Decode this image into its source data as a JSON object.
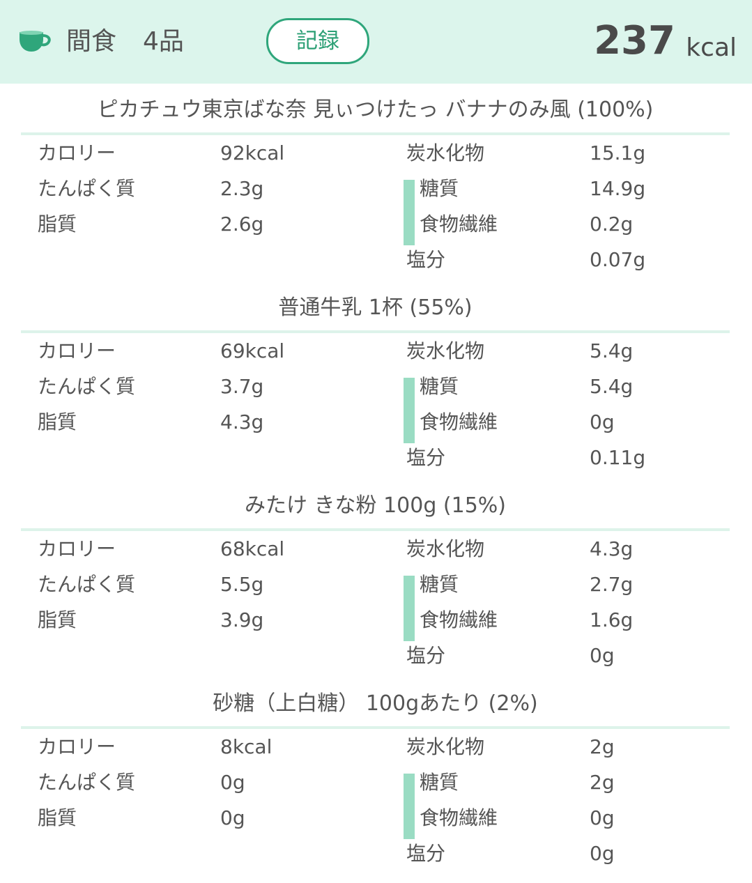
{
  "header": {
    "icon": "cup-icon",
    "meal_name": "間食",
    "item_count": "4品",
    "record_label": "記録",
    "total_kcal": "237",
    "total_unit": "kcal"
  },
  "foods": [
    {
      "title": "ピカチュウ東京ばな奈 見ぃつけたっ バナナのみ風 (100%)",
      "calorie_label": "カロリー",
      "calorie": "92kcal",
      "protein_label": "たんぱく質",
      "protein": "2.3g",
      "fat_label": "脂質",
      "fat": "2.6g",
      "carb_label": "炭水化物",
      "carb": "15.1g",
      "sugar_label": "糖質",
      "sugar": "14.9g",
      "fiber_label": "食物繊維",
      "fiber": "0.2g",
      "salt_label": "塩分",
      "salt": "0.07g"
    },
    {
      "title": "普通牛乳 1杯 (55%)",
      "calorie_label": "カロリー",
      "calorie": "69kcal",
      "protein_label": "たんぱく質",
      "protein": "3.7g",
      "fat_label": "脂質",
      "fat": "4.3g",
      "carb_label": "炭水化物",
      "carb": "5.4g",
      "sugar_label": "糖質",
      "sugar": "5.4g",
      "fiber_label": "食物繊維",
      "fiber": "0g",
      "salt_label": "塩分",
      "salt": "0.11g"
    },
    {
      "title": "みたけ きな粉 100g (15%)",
      "calorie_label": "カロリー",
      "calorie": "68kcal",
      "protein_label": "たんぱく質",
      "protein": "5.5g",
      "fat_label": "脂質",
      "fat": "3.9g",
      "carb_label": "炭水化物",
      "carb": "4.3g",
      "sugar_label": "糖質",
      "sugar": "2.7g",
      "fiber_label": "食物繊維",
      "fiber": "1.6g",
      "salt_label": "塩分",
      "salt": "0g"
    },
    {
      "title": "砂糖（上白糖） 100gあたり (2%)",
      "calorie_label": "カロリー",
      "calorie": "8kcal",
      "protein_label": "たんぱく質",
      "protein": "0g",
      "fat_label": "脂質",
      "fat": "0g",
      "carb_label": "炭水化物",
      "carb": "2g",
      "sugar_label": "糖質",
      "sugar": "2g",
      "fiber_label": "食物繊維",
      "fiber": "0g",
      "salt_label": "塩分",
      "salt": "0g"
    }
  ],
  "colors": {
    "header_bg": "#dcf5ec",
    "accent": "#2fa67b",
    "sub_bar": "#9adcc3",
    "divider": "#ddf3ea"
  }
}
